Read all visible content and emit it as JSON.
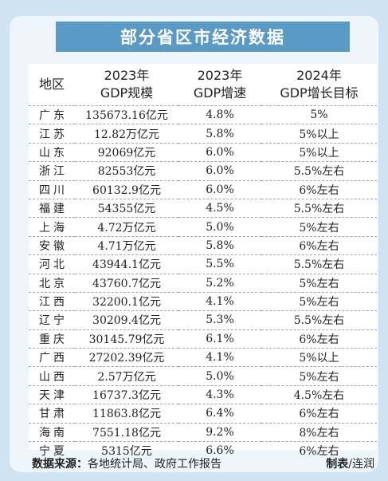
{
  "title": "部分省区市经济数据",
  "table": {
    "headers": {
      "region": "地区",
      "gdp_line1": "2023年",
      "gdp_line2": "GDP规模",
      "growth_line1": "2023年",
      "growth_line2": "GDP增速",
      "target_line1": "2024年",
      "target_line2": "GDP增长目标"
    },
    "rows": [
      {
        "region": "广东",
        "gdp": "135673.16亿元",
        "growth": "4.8%",
        "target": "5%"
      },
      {
        "region": "江苏",
        "gdp": "12.82万亿元",
        "growth": "5.8%",
        "target": "5%以上"
      },
      {
        "region": "山东",
        "gdp": "92069亿元",
        "growth": "6.0%",
        "target": "5%以上"
      },
      {
        "region": "浙江",
        "gdp": "82553亿元",
        "growth": "6.0%",
        "target": "5.5%左右"
      },
      {
        "region": "四川",
        "gdp": "60132.9亿元",
        "growth": "6.0%",
        "target": "6%左右"
      },
      {
        "region": "福建",
        "gdp": "54355亿元",
        "growth": "4.5%",
        "target": "5.5%左右"
      },
      {
        "region": "上海",
        "gdp": "4.72万亿元",
        "growth": "5.0%",
        "target": "5%左右"
      },
      {
        "region": "安徽",
        "gdp": "4.71万亿元",
        "growth": "5.8%",
        "target": "6%左右"
      },
      {
        "region": "河北",
        "gdp": "43944.1亿元",
        "growth": "5.5%",
        "target": "5.5%左右"
      },
      {
        "region": "北京",
        "gdp": "43760.7亿元",
        "growth": "5.2%",
        "target": "5%左右"
      },
      {
        "region": "江西",
        "gdp": "32200.1亿元",
        "growth": "4.1%",
        "target": "5%左右"
      },
      {
        "region": "辽宁",
        "gdp": "30209.4亿元",
        "growth": "5.3%",
        "target": "5.5%左右"
      },
      {
        "region": "重庆",
        "gdp": "30145.79亿元",
        "growth": "6.1%",
        "target": "6%左右"
      },
      {
        "region": "广西",
        "gdp": "27202.39亿元",
        "growth": "4.1%",
        "target": "5%以上"
      },
      {
        "region": "山西",
        "gdp": "2.57万亿元",
        "growth": "5.0%",
        "target": "5%左右"
      },
      {
        "region": "天津",
        "gdp": "16737.3亿元",
        "growth": "4.3%",
        "target": "4.5%左右"
      },
      {
        "region": "甘肃",
        "gdp": "11863.8亿元",
        "growth": "6.4%",
        "target": "6%左右"
      },
      {
        "region": "海南",
        "gdp": "7551.18亿元",
        "growth": "9.2%",
        "target": "8%左右"
      },
      {
        "region": "宁夏",
        "gdp": "5315亿元",
        "growth": "6.6%",
        "target": "6%左右"
      }
    ]
  },
  "footer": {
    "source_label": "数据来源：",
    "source_text": "各地统计局、政府工作报告",
    "credit_label": "制表",
    "credit_text": "/连润"
  },
  "colors": {
    "title_bar": "#5a9ac4",
    "frame": "#cfe3f3",
    "panel": "#eef5fb"
  }
}
